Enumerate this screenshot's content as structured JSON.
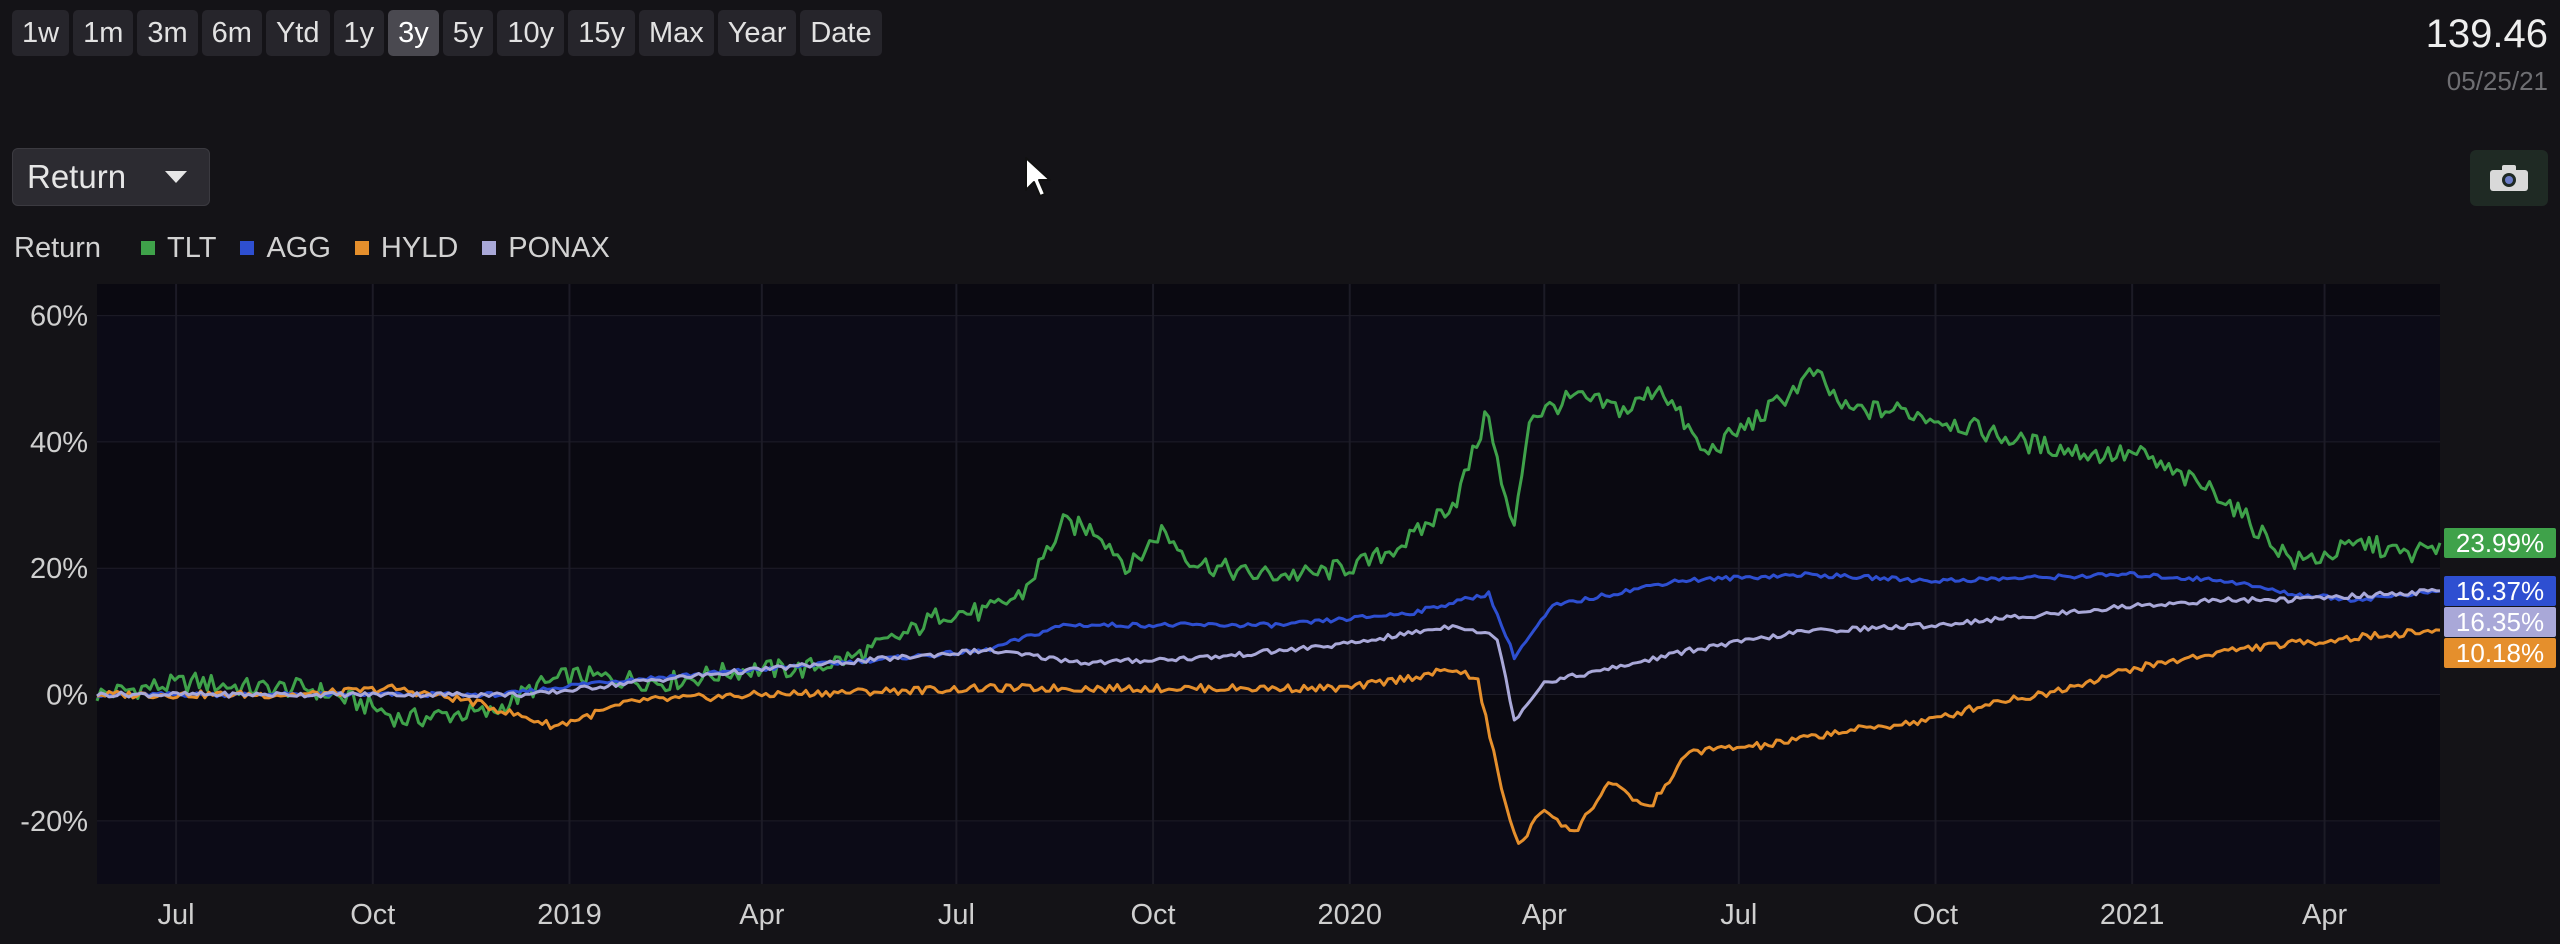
{
  "toolbar": {
    "ranges": [
      "1w",
      "1m",
      "3m",
      "6m",
      "Ytd",
      "1y",
      "3y",
      "5y",
      "10y",
      "15y",
      "Max",
      "Year",
      "Date"
    ],
    "active_range": "3y"
  },
  "header": {
    "last_value": "139.46",
    "last_date": "05/25/21"
  },
  "metric_select": {
    "selected": "Return"
  },
  "icons": {
    "camera": "camera-icon",
    "dropdown": "caret-down-icon",
    "cursor": "mouse-pointer-icon"
  },
  "chart_data": {
    "type": "line",
    "legend_title": "Return",
    "x_tick_labels": [
      "Jul",
      "Oct",
      "2019",
      "Apr",
      "Jul",
      "Oct",
      "2020",
      "Apr",
      "Jul",
      "Oct",
      "2021",
      "Apr"
    ],
    "x_range": [
      "2018-05-25",
      "2021-05-25"
    ],
    "y_tick_labels": [
      "60%",
      "40%",
      "20%",
      "0%",
      "-20%"
    ],
    "ylim": [
      -30,
      65
    ],
    "grid": "alternating horizontal bands, vertical gridlines",
    "series": [
      {
        "name": "TLT",
        "color": "#3fa24a",
        "last_label": "23.99%",
        "points": [
          [
            "2018-05-25",
            0
          ],
          [
            "2018-06-15",
            1
          ],
          [
            "2018-07-10",
            2
          ],
          [
            "2018-08-05",
            1
          ],
          [
            "2018-09-01",
            1
          ],
          [
            "2018-10-01",
            -2
          ],
          [
            "2018-10-15",
            -4
          ],
          [
            "2018-11-10",
            -3
          ],
          [
            "2018-11-25",
            -3
          ],
          [
            "2018-12-15",
            1
          ],
          [
            "2019-01-01",
            3
          ],
          [
            "2019-02-15",
            2
          ],
          [
            "2019-03-25",
            4
          ],
          [
            "2019-04-20",
            4
          ],
          [
            "2019-05-15",
            6
          ],
          [
            "2019-06-10",
            10
          ],
          [
            "2019-06-25",
            13
          ],
          [
            "2019-07-15",
            13
          ],
          [
            "2019-08-01",
            16
          ],
          [
            "2019-08-20",
            27
          ],
          [
            "2019-09-05",
            26
          ],
          [
            "2019-09-20",
            20
          ],
          [
            "2019-10-05",
            26
          ],
          [
            "2019-10-20",
            21
          ],
          [
            "2019-11-15",
            19
          ],
          [
            "2019-12-15",
            19
          ],
          [
            "2020-01-10",
            21
          ],
          [
            "2020-01-31",
            25
          ],
          [
            "2020-02-20",
            31
          ],
          [
            "2020-03-06",
            45
          ],
          [
            "2020-03-12",
            33
          ],
          [
            "2020-03-18",
            26
          ],
          [
            "2020-03-25",
            44
          ],
          [
            "2020-04-15",
            47
          ],
          [
            "2020-05-10",
            45
          ],
          [
            "2020-05-25",
            49
          ],
          [
            "2020-06-15",
            38
          ],
          [
            "2020-07-15",
            45
          ],
          [
            "2020-08-05",
            51
          ],
          [
            "2020-08-20",
            45
          ],
          [
            "2020-09-15",
            45
          ],
          [
            "2020-10-10",
            43
          ],
          [
            "2020-11-10",
            40
          ],
          [
            "2020-12-15",
            38
          ],
          [
            "2021-01-05",
            38
          ],
          [
            "2021-01-20",
            35
          ],
          [
            "2021-02-10",
            32
          ],
          [
            "2021-03-01",
            26
          ],
          [
            "2021-03-18",
            21
          ],
          [
            "2021-04-01",
            22
          ],
          [
            "2021-04-20",
            24
          ],
          [
            "2021-05-10",
            22
          ],
          [
            "2021-05-25",
            24
          ]
        ]
      },
      {
        "name": "AGG",
        "color": "#2e4fd1",
        "last_label": "16.37%",
        "points": [
          [
            "2018-05-25",
            0
          ],
          [
            "2018-09-01",
            0
          ],
          [
            "2018-12-01",
            0
          ],
          [
            "2019-01-15",
            2
          ],
          [
            "2019-04-01",
            4
          ],
          [
            "2019-07-15",
            7
          ],
          [
            "2019-08-20",
            11
          ],
          [
            "2019-10-01",
            11
          ],
          [
            "2019-12-01",
            11
          ],
          [
            "2020-01-31",
            13
          ],
          [
            "2020-03-06",
            16
          ],
          [
            "2020-03-18",
            6
          ],
          [
            "2020-04-05",
            14
          ],
          [
            "2020-06-01",
            18
          ],
          [
            "2020-08-01",
            19
          ],
          [
            "2020-10-01",
            18
          ],
          [
            "2020-12-31",
            19
          ],
          [
            "2021-02-15",
            18
          ],
          [
            "2021-03-15",
            16
          ],
          [
            "2021-04-15",
            15
          ],
          [
            "2021-05-25",
            16.4
          ]
        ]
      },
      {
        "name": "HYLD",
        "color": "#e58f2c",
        "last_label": "10.18%",
        "points": [
          [
            "2018-05-25",
            0
          ],
          [
            "2018-09-01",
            0
          ],
          [
            "2018-10-10",
            1
          ],
          [
            "2018-11-15",
            -1
          ],
          [
            "2018-12-25",
            -5
          ],
          [
            "2019-02-01",
            -1
          ],
          [
            "2019-04-01",
            0
          ],
          [
            "2019-07-15",
            1
          ],
          [
            "2019-10-01",
            1
          ],
          [
            "2019-12-31",
            1
          ],
          [
            "2020-02-20",
            4
          ],
          [
            "2020-03-01",
            2
          ],
          [
            "2020-03-12",
            -15
          ],
          [
            "2020-03-20",
            -24
          ],
          [
            "2020-04-01",
            -18
          ],
          [
            "2020-04-15",
            -22
          ],
          [
            "2020-05-01",
            -14
          ],
          [
            "2020-05-20",
            -18
          ],
          [
            "2020-06-08",
            -9
          ],
          [
            "2020-07-15",
            -8
          ],
          [
            "2020-08-15",
            -6
          ],
          [
            "2020-09-30",
            -4
          ],
          [
            "2020-10-30",
            -1
          ],
          [
            "2020-11-20",
            0
          ],
          [
            "2020-12-31",
            4
          ],
          [
            "2021-02-15",
            7
          ],
          [
            "2021-03-15",
            8
          ],
          [
            "2021-04-15",
            9
          ],
          [
            "2021-05-25",
            10.2
          ]
        ]
      },
      {
        "name": "PONAX",
        "color": "#a9a8d8",
        "last_label": "16.35%",
        "points": [
          [
            "2018-05-25",
            0
          ],
          [
            "2018-09-01",
            0
          ],
          [
            "2018-12-15",
            0
          ],
          [
            "2019-02-01",
            2
          ],
          [
            "2019-04-01",
            4
          ],
          [
            "2019-07-15",
            7
          ],
          [
            "2019-09-01",
            5
          ],
          [
            "2019-11-01",
            6
          ],
          [
            "2019-12-31",
            8
          ],
          [
            "2020-02-20",
            11
          ],
          [
            "2020-03-10",
            9
          ],
          [
            "2020-03-18",
            -4
          ],
          [
            "2020-04-01",
            2
          ],
          [
            "2020-05-01",
            4
          ],
          [
            "2020-06-08",
            7
          ],
          [
            "2020-08-01",
            10
          ],
          [
            "2020-10-01",
            11
          ],
          [
            "2020-12-31",
            14
          ],
          [
            "2021-02-15",
            15
          ],
          [
            "2021-03-15",
            15
          ],
          [
            "2021-05-25",
            16.4
          ]
        ]
      }
    ]
  }
}
